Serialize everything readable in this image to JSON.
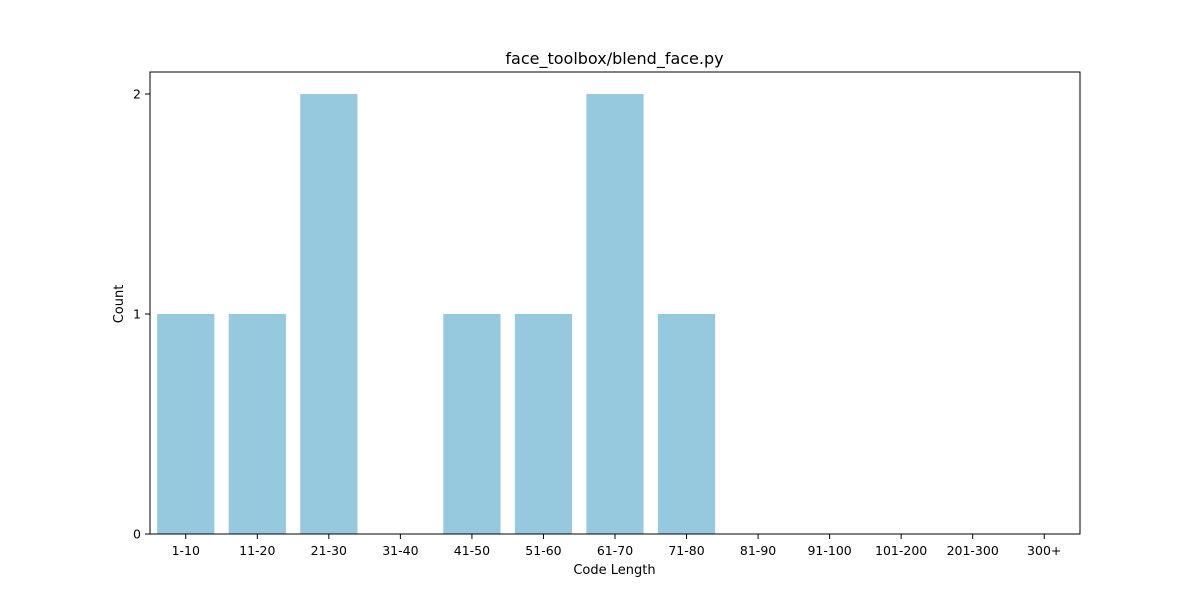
{
  "chart_data": {
    "type": "bar",
    "title": "face_toolbox/blend_face.py",
    "xlabel": "Code Length",
    "ylabel": "Count",
    "categories": [
      "1-10",
      "11-20",
      "21-30",
      "31-40",
      "41-50",
      "51-60",
      "61-70",
      "71-80",
      "81-90",
      "91-100",
      "101-200",
      "201-300",
      "300+"
    ],
    "values": [
      1,
      1,
      2,
      0,
      1,
      1,
      2,
      1,
      0,
      0,
      0,
      0,
      0
    ],
    "ylim": [
      0,
      2.1
    ],
    "yticks": [
      0,
      1,
      2
    ],
    "grid": false,
    "legend": "none",
    "bar_color": "#96c9de"
  }
}
